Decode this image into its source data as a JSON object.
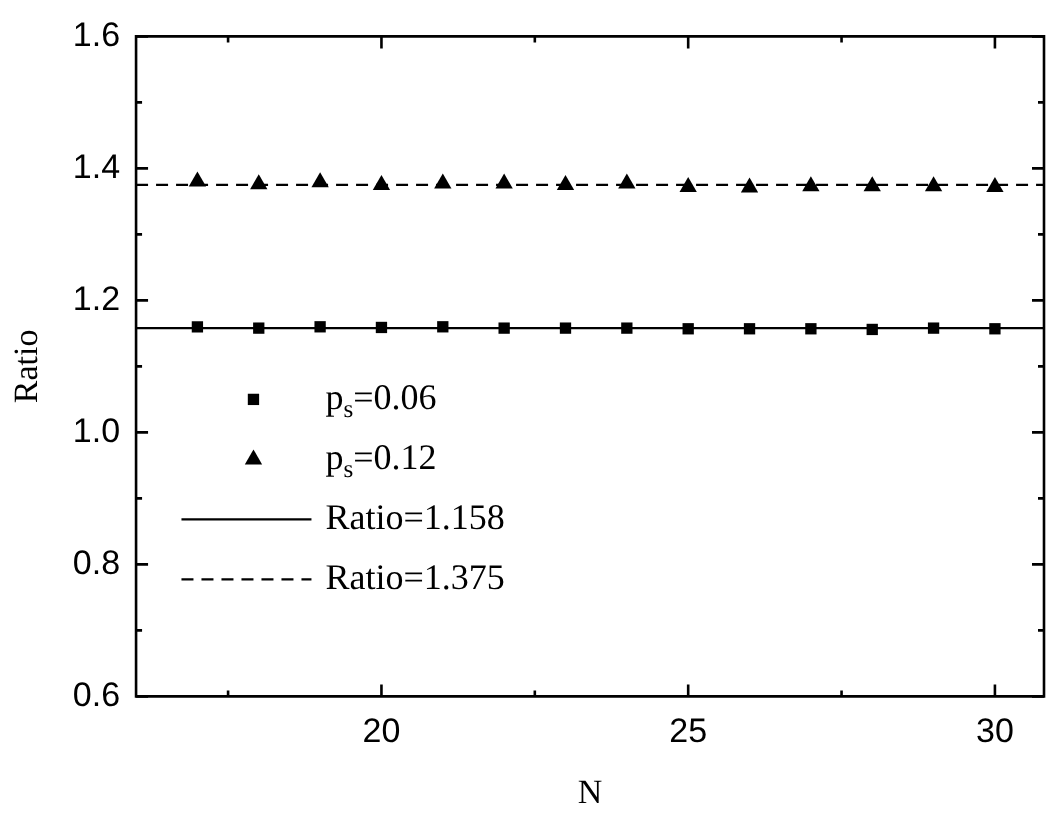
{
  "chart_data": {
    "type": "scatter",
    "xlabel": "N",
    "ylabel": "Ratio",
    "xlim": [
      16,
      30.8
    ],
    "ylim": [
      0.6,
      1.6
    ],
    "xticks": [
      {
        "value": 17.5,
        "label": null
      },
      20,
      {
        "value": 22.5,
        "label": null
      },
      25,
      {
        "value": 27.5,
        "label": null
      },
      30
    ],
    "yticks": [
      0.6,
      {
        "value": 0.7,
        "label": null
      },
      0.8,
      {
        "value": 0.9,
        "label": null
      },
      {
        "value": 1,
        "label": "1.0"
      },
      {
        "value": 1.1,
        "label": null
      },
      1.2,
      {
        "value": 1.3,
        "label": null
      },
      1.4,
      {
        "value": 1.5,
        "label": null
      },
      1.6
    ],
    "grid": false,
    "legend": "left",
    "series": [
      {
        "name": "p$_{s}$=0.06",
        "color": "#000000",
        "marker": "square",
        "x": [
          17,
          18,
          19,
          20,
          21,
          22,
          23,
          24,
          25,
          26,
          27,
          28,
          29,
          30
        ],
        "values": [
          1.16,
          1.158,
          1.16,
          1.159,
          1.16,
          1.158,
          1.158,
          1.158,
          1.157,
          1.157,
          1.157,
          1.156,
          1.158,
          1.157
        ]
      },
      {
        "name": "p$_{s}$=0.12",
        "color": "#000000",
        "marker": "triangle",
        "x": [
          17,
          18,
          19,
          20,
          21,
          22,
          23,
          24,
          25,
          26,
          27,
          28,
          29,
          30
        ],
        "values": [
          1.38,
          1.376,
          1.379,
          1.375,
          1.377,
          1.377,
          1.375,
          1.377,
          1.372,
          1.371,
          1.373,
          1.373,
          1.373,
          1.372
        ]
      },
      {
        "name": "Ratio=1.158",
        "type": "line",
        "color": "#000000",
        "line_style": "solid",
        "marker": "none",
        "x": [
          16,
          30.8
        ],
        "values": [
          1.158,
          1.158
        ]
      },
      {
        "name": "Ratio=1.375",
        "type": "line",
        "color": "#000000",
        "line_style": "dashed",
        "marker": "none",
        "x": [
          16,
          30.8
        ],
        "values": [
          1.375,
          1.375
        ]
      }
    ]
  }
}
